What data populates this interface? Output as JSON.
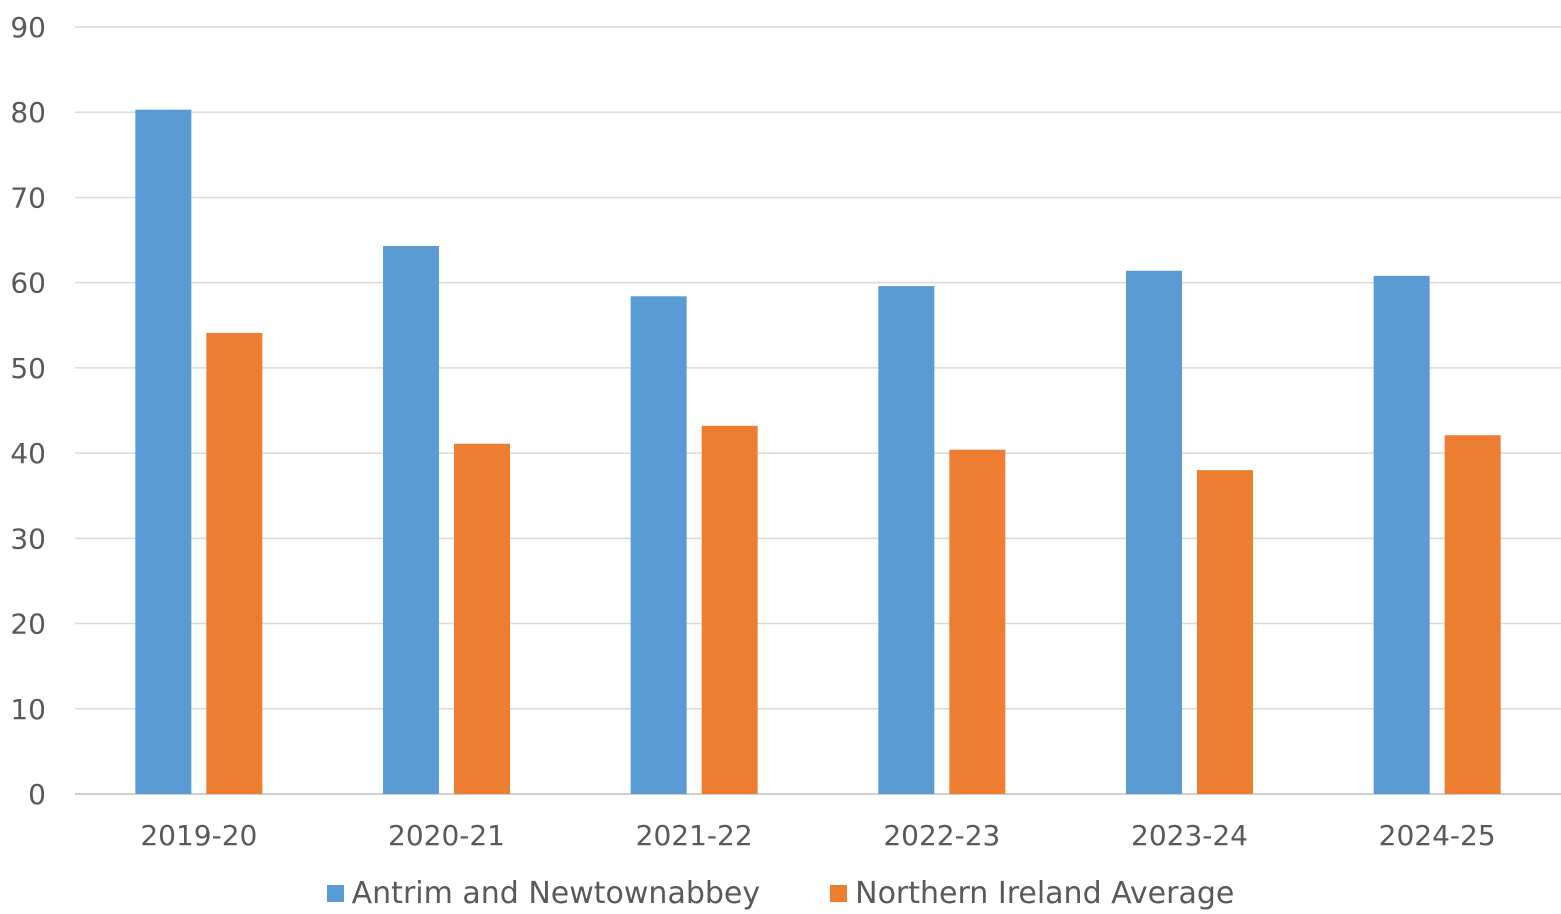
{
  "chart_data": {
    "type": "bar",
    "categories": [
      "2019-20",
      "2020-21",
      "2021-22",
      "2022-23",
      "2023-24",
      "2024-25"
    ],
    "series": [
      {
        "name": "Antrim and Newtownabbey",
        "color": "#5B9BD5",
        "values": [
          80.3,
          64.3,
          58.4,
          59.6,
          61.4,
          60.8
        ]
      },
      {
        "name": "Northern Ireland Average",
        "color": "#ED7D31",
        "values": [
          54.1,
          41.1,
          43.2,
          40.4,
          38.0,
          42.1
        ]
      }
    ],
    "ylim": [
      0,
      90
    ],
    "yticks": [
      "0",
      "10",
      "20",
      "30",
      "40",
      "50",
      "60",
      "70",
      "80",
      "90"
    ],
    "grid": true,
    "legend_position": "bottom"
  }
}
